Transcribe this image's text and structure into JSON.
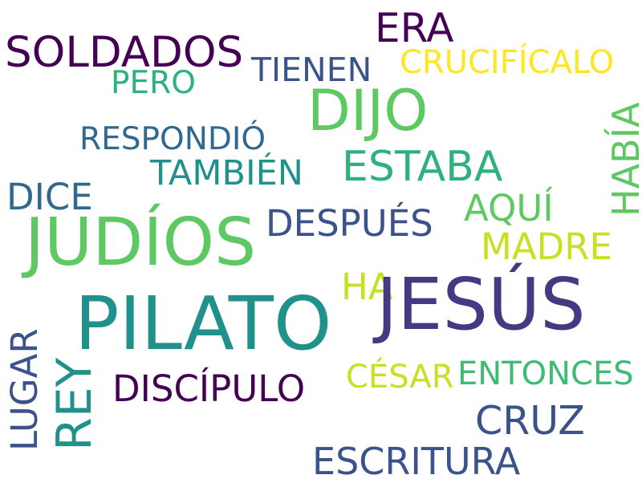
{
  "words": [
    {
      "id": "soldados",
      "text": "SOLDADOS",
      "color": "#440154"
    },
    {
      "id": "era",
      "text": "ERA",
      "color": "#440154"
    },
    {
      "id": "tienen",
      "text": "TIENEN",
      "color": "#3b528b"
    },
    {
      "id": "crucificalo",
      "text": "CRUCIFÍCALO",
      "color": "#fde725"
    },
    {
      "id": "pero",
      "text": "PERO",
      "color": "#2db27d"
    },
    {
      "id": "dijo",
      "text": "DIJO",
      "color": "#5ec962"
    },
    {
      "id": "respondio",
      "text": "RESPONDIÓ",
      "color": "#31688e"
    },
    {
      "id": "habia",
      "text": "HABÍA",
      "color": "#5ec962"
    },
    {
      "id": "tambien",
      "text": "TAMBIÉN",
      "color": "#21918c"
    },
    {
      "id": "estaba",
      "text": "ESTABA",
      "color": "#2db27d"
    },
    {
      "id": "dice",
      "text": "DICE",
      "color": "#31688e"
    },
    {
      "id": "aqui",
      "text": "AQUÍ",
      "color": "#5ec962"
    },
    {
      "id": "judios",
      "text": "JUDÍOS",
      "color": "#5ec962"
    },
    {
      "id": "despues",
      "text": "DESPUÉS",
      "color": "#3b528b"
    },
    {
      "id": "madre",
      "text": "MADRE",
      "color": "#c8e020"
    },
    {
      "id": "ha",
      "text": "HA",
      "color": "#c8e020"
    },
    {
      "id": "jesus",
      "text": "JESÚS",
      "color": "#443983"
    },
    {
      "id": "pilato",
      "text": "PILATO",
      "color": "#21918c"
    },
    {
      "id": "lugar",
      "text": "LUGAR",
      "color": "#3b528b"
    },
    {
      "id": "rey",
      "text": "REY",
      "color": "#21918c"
    },
    {
      "id": "discipulo",
      "text": "DISCÍPULO",
      "color": "#440154"
    },
    {
      "id": "cesar",
      "text": "CÉSAR",
      "color": "#c8e020"
    },
    {
      "id": "entonces",
      "text": "ENTONCES",
      "color": "#3fbc73"
    },
    {
      "id": "cruz",
      "text": "CRUZ",
      "color": "#3b528b"
    },
    {
      "id": "escritura",
      "text": "ESCRITURA",
      "color": "#3b528b"
    }
  ]
}
